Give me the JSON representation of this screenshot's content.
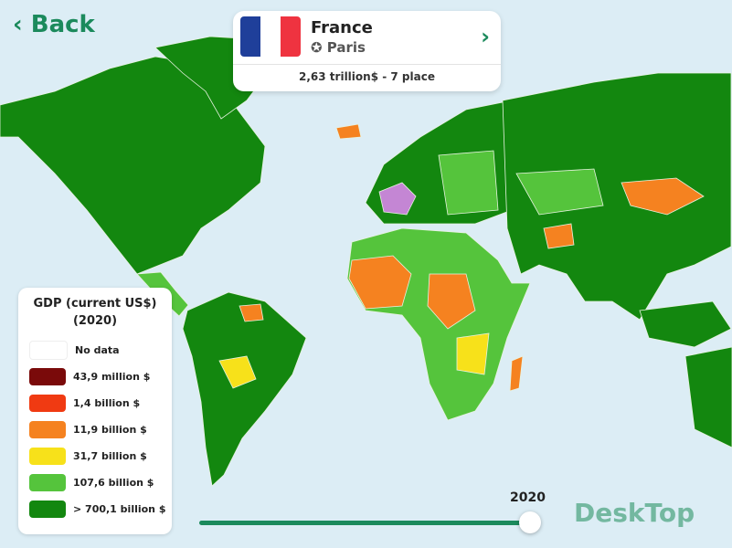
{
  "back": "Back",
  "country": {
    "name": "France",
    "capital": "Paris",
    "gdp_text": "2,63 trillion$ - 7 place",
    "flag_colors": [
      "#1f3f9a",
      "#ffffff",
      "#ef3340"
    ]
  },
  "legend": {
    "title": "GDP (current US$)",
    "subtitle": "(2020)",
    "items": [
      {
        "label": "No data",
        "color": "#ffffff"
      },
      {
        "label": "43,9 million $",
        "color": "#7a0a0a"
      },
      {
        "label": "1,4 billion $",
        "color": "#f03a12"
      },
      {
        "label": "11,9 billion $",
        "color": "#f58220"
      },
      {
        "label": "31,7 billion $",
        "color": "#f7e11a"
      },
      {
        "label": "107,6 billion $",
        "color": "#55c43c"
      },
      {
        "label": "> 700,1 billion $",
        "color": "#13870f"
      }
    ]
  },
  "year": "2020",
  "watermark": "DeskTop"
}
